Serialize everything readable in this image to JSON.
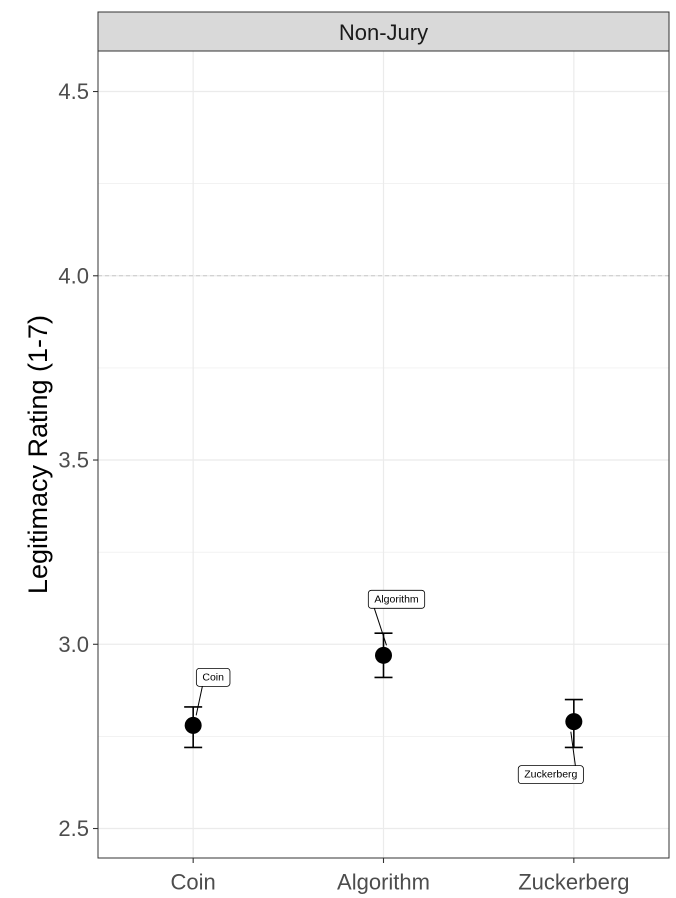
{
  "chart_data": {
    "type": "scatter",
    "facet": "Non-Jury",
    "ylabel": "Legitimacy Rating (1-7)",
    "xlabel": "",
    "categories": [
      "Coin",
      "Algorithm",
      "Zuckerberg"
    ],
    "values": [
      2.78,
      2.97,
      2.79
    ],
    "error_low": [
      2.72,
      2.91,
      2.72
    ],
    "error_high": [
      2.83,
      3.03,
      2.85
    ],
    "point_labels": [
      "Coin",
      "Algorithm",
      "Zuckerberg"
    ],
    "ylim": [
      2.42,
      4.61
    ],
    "yticks": [
      2.5,
      3.0,
      3.5,
      4.0,
      4.5
    ],
    "ytick_labels": [
      "2.5",
      "3.0",
      "3.5",
      "4.0",
      "4.5"
    ],
    "reference_line": 4.0,
    "grid": true,
    "colors": {
      "point": "#000000",
      "strip": "#d9d9d9",
      "grid": "#ebebeb",
      "reference": "#c8c8c8"
    }
  }
}
